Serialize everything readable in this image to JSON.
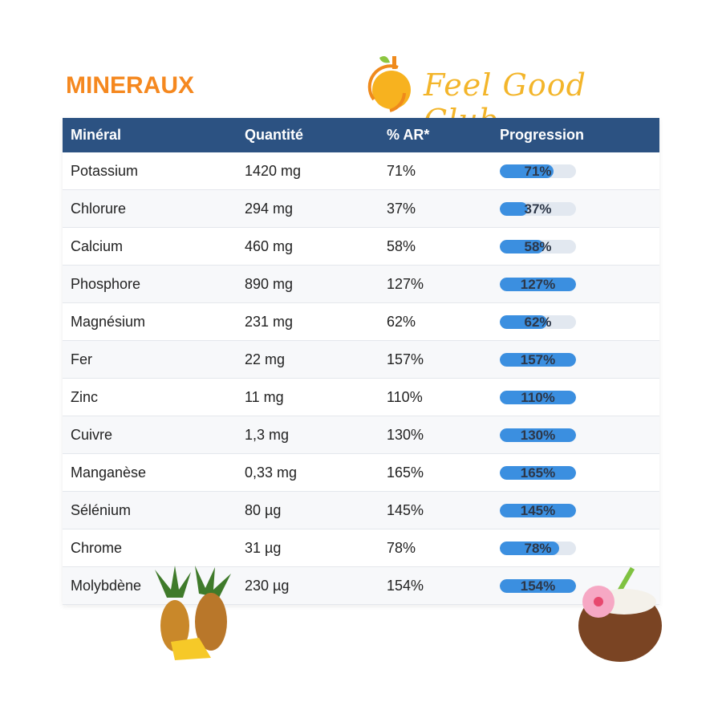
{
  "title": "MINERAUX",
  "logo": "Feel Good Club",
  "columns": [
    "Minéral",
    "Quantité",
    "% AR*",
    "Progression"
  ],
  "rows": [
    {
      "name": "Potassium",
      "qty": "1420 mg",
      "ar": "71%",
      "pct": 71
    },
    {
      "name": "Chlorure",
      "qty": "294 mg",
      "ar": "37%",
      "pct": 37
    },
    {
      "name": "Calcium",
      "qty": "460 mg",
      "ar": "58%",
      "pct": 58
    },
    {
      "name": "Phosphore",
      "qty": "890 mg",
      "ar": "127%",
      "pct": 127
    },
    {
      "name": "Magnésium",
      "qty": "231 mg",
      "ar": "62%",
      "pct": 62
    },
    {
      "name": "Fer",
      "qty": "22 mg",
      "ar": "157%",
      "pct": 157
    },
    {
      "name": "Zinc",
      "qty": "11 mg",
      "ar": "110%",
      "pct": 110
    },
    {
      "name": "Cuivre",
      "qty": "1,3 mg",
      "ar": "130%",
      "pct": 130
    },
    {
      "name": "Manganèse",
      "qty": "0,33 mg",
      "ar": "165%",
      "pct": 165
    },
    {
      "name": "Sélénium",
      "qty": "80 µg",
      "ar": "145%",
      "pct": 145
    },
    {
      "name": "Chrome",
      "qty": "31 µg",
      "ar": "78%",
      "pct": 78
    },
    {
      "name": "Molybdène",
      "qty": "230 µg",
      "ar": "154%",
      "pct": 154
    }
  ]
}
